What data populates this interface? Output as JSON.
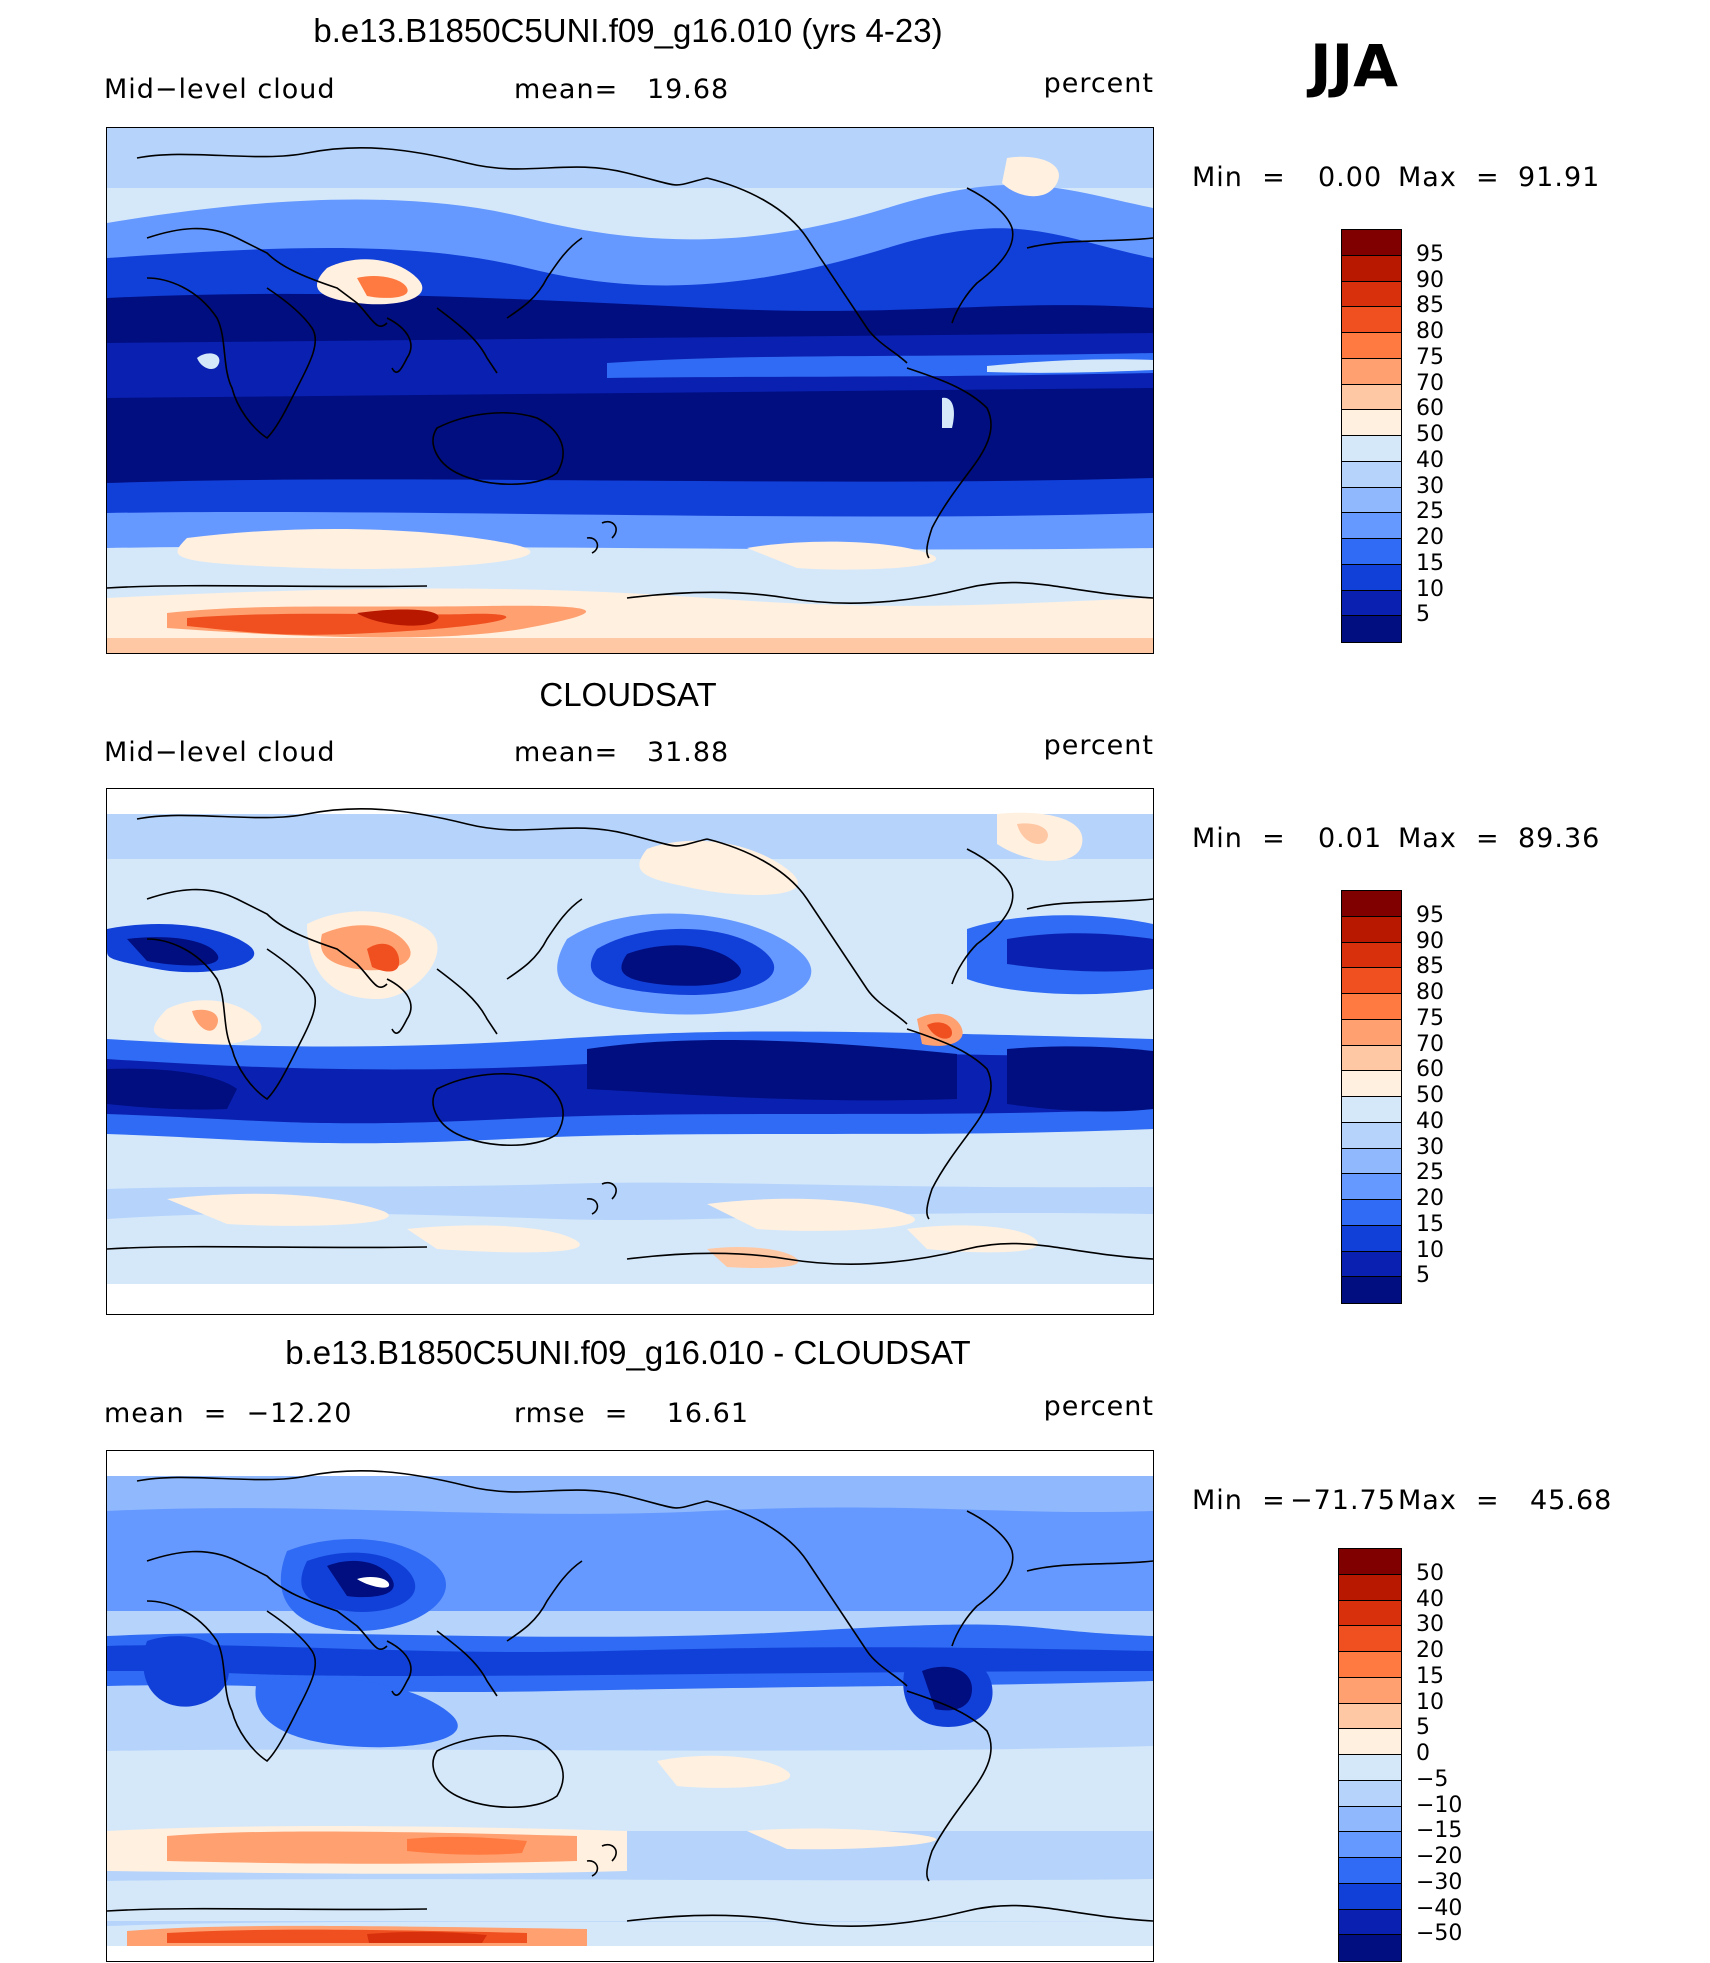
{
  "season": "JJA",
  "panels": [
    {
      "title": "b.e13.B1850C5UNI.f09_g16.010 (yrs 4-23)",
      "left_label": "Mid−level cloud",
      "center_label": "mean=   19.68",
      "right_label": "percent",
      "min_label": "Min  =",
      "min_value": "0.00",
      "max_label": "Max  =",
      "max_value": "91.91",
      "colorbar": {
        "labels": [
          "95",
          "90",
          "85",
          "80",
          "75",
          "70",
          "60",
          "50",
          "40",
          "30",
          "25",
          "20",
          "15",
          "10",
          "5"
        ],
        "colors": [
          "#800000",
          "#b81700",
          "#d8300c",
          "#f05020",
          "#ff7a40",
          "#ffa070",
          "#ffc8a5",
          "#fff0e0",
          "#d5e8fa",
          "#b5d3fb",
          "#8fb8fd",
          "#6699ff",
          "#2f6bf4",
          "#1140d8",
          "#0a20b0",
          "#000e80"
        ]
      }
    },
    {
      "title": "CLOUDSAT",
      "left_label": "Mid−level cloud",
      "center_label": "mean=   31.88",
      "right_label": "percent",
      "min_label": "Min  =",
      "min_value": "0.01",
      "max_label": "Max  =",
      "max_value": "89.36",
      "colorbar": {
        "labels": [
          "95",
          "90",
          "85",
          "80",
          "75",
          "70",
          "60",
          "50",
          "40",
          "30",
          "25",
          "20",
          "15",
          "10",
          "5"
        ],
        "colors": [
          "#800000",
          "#b81700",
          "#d8300c",
          "#f05020",
          "#ff7a40",
          "#ffa070",
          "#ffc8a5",
          "#fff0e0",
          "#d5e8fa",
          "#b5d3fb",
          "#8fb8fd",
          "#6699ff",
          "#2f6bf4",
          "#1140d8",
          "#0a20b0",
          "#000e80"
        ]
      }
    },
    {
      "title": "b.e13.B1850C5UNI.f09_g16.010 - CLOUDSAT",
      "left_label": "mean  =  −12.20",
      "center_label": "rmse  =    16.61",
      "right_label": "percent",
      "min_label": "Min  =",
      "min_value": "−71.75",
      "max_label": "Max  =",
      "max_value": "45.68",
      "colorbar": {
        "labels": [
          "50",
          "40",
          "30",
          "20",
          "15",
          "10",
          "5",
          "0",
          "−5",
          "−10",
          "−15",
          "−20",
          "−30",
          "−40",
          "−50"
        ],
        "colors": [
          "#800000",
          "#b81700",
          "#d8300c",
          "#f05020",
          "#ff7a40",
          "#ffa070",
          "#ffc8a5",
          "#fff0e0",
          "#d5e8fa",
          "#b5d3fb",
          "#8fb8fd",
          "#6699ff",
          "#2f6bf4",
          "#1140d8",
          "#0a20b0",
          "#000e80"
        ]
      }
    }
  ]
}
